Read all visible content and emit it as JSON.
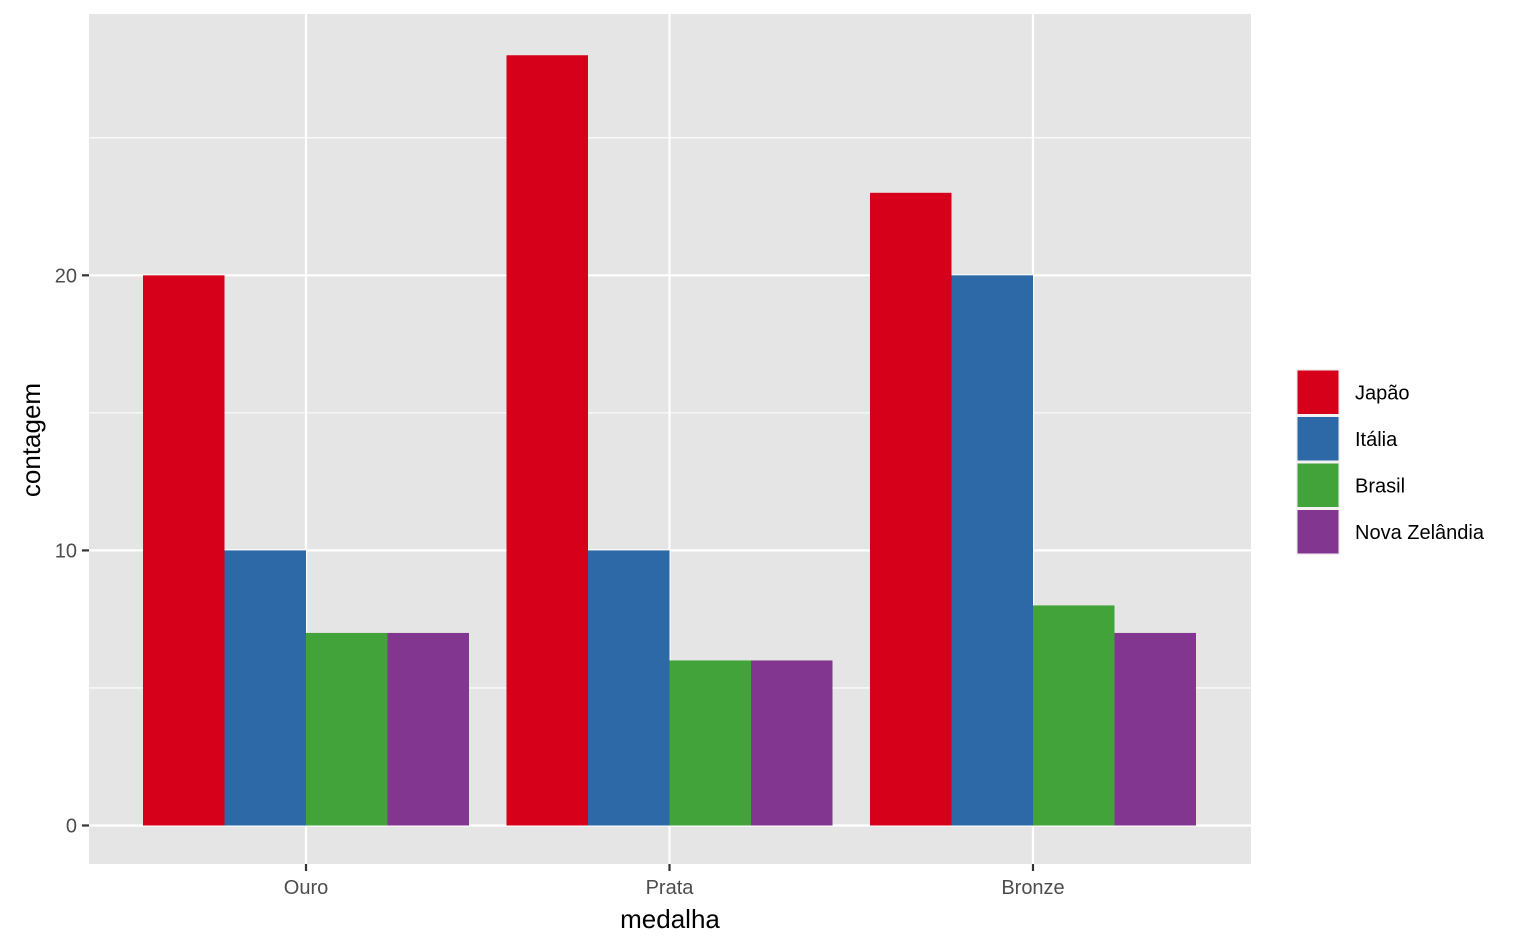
{
  "chart_data": {
    "type": "bar",
    "title": "",
    "xlabel": "medalha",
    "ylabel": "contagem",
    "categories": [
      "Ouro",
      "Prata",
      "Bronze"
    ],
    "series": [
      {
        "name": "Japão",
        "color": "#d7001a",
        "values": [
          20,
          28,
          23
        ]
      },
      {
        "name": "Itália",
        "color": "#2c69a6",
        "values": [
          10,
          10,
          20
        ]
      },
      {
        "name": "Brasil",
        "color": "#41a33a",
        "values": [
          7,
          6,
          8
        ]
      },
      {
        "name": "Nova Zelândia",
        "color": "#83368f",
        "values": [
          7,
          6,
          7
        ]
      }
    ],
    "ylim": [
      -1.4,
      29.5
    ],
    "yticks": [
      0,
      10,
      20
    ],
    "grid": true,
    "legend_position": "right",
    "panel_background": "#e5e5e5"
  }
}
